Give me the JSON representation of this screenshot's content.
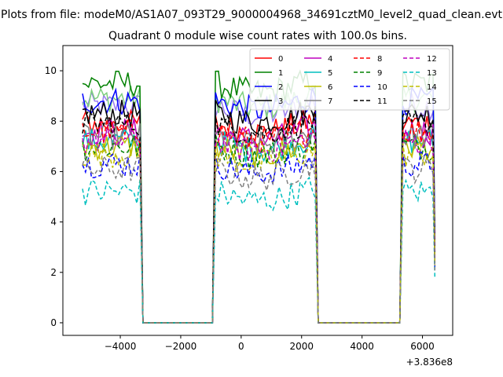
{
  "chart_data": {
    "type": "line",
    "suptitle": "Plots from file: modeM0/AS1A07_093T29_9000004968_34691cztM0_level2_quad_clean.evt",
    "title": "Quadrant 0 module wise count rates with 100.0s bins.",
    "xlabel": "",
    "ylabel": "",
    "offset_text": "+3.836e8",
    "xlim": [
      -5900,
      7000
    ],
    "ylim": [
      -0.5,
      11.0
    ],
    "xticks": [
      -4000,
      -2000,
      0,
      2000,
      4000,
      6000
    ],
    "xtick_labels": [
      "−4000",
      "−2000",
      "0",
      "2000",
      "4000",
      "6000"
    ],
    "yticks": [
      0,
      2,
      4,
      6,
      8,
      10
    ],
    "ytick_labels": [
      "0",
      "2",
      "4",
      "6",
      "8",
      "10"
    ],
    "grid": false,
    "legend_position": "top-right",
    "gti_segments": [
      {
        "start": -5250,
        "end": -3350
      },
      {
        "start": -850,
        "end": 2450
      },
      {
        "start": 5350,
        "end": 6350
      }
    ],
    "gap_level": 0,
    "series": [
      {
        "name": "0",
        "color": "#ff0000",
        "dash": "solid",
        "base": 7.9
      },
      {
        "name": "1",
        "color": "#008000",
        "dash": "solid",
        "base": 9.5
      },
      {
        "name": "2",
        "color": "#0000ff",
        "dash": "solid",
        "base": 8.8
      },
      {
        "name": "3",
        "color": "#000000",
        "dash": "solid",
        "base": 8.3
      },
      {
        "name": "4",
        "color": "#bf00bf",
        "dash": "solid",
        "base": 7.6
      },
      {
        "name": "5",
        "color": "#00bfbf",
        "dash": "solid",
        "base": 7.2
      },
      {
        "name": "6",
        "color": "#bfbf00",
        "dash": "solid",
        "base": 7.0
      },
      {
        "name": "7",
        "color": "#808080",
        "dash": "solid",
        "base": 7.4
      },
      {
        "name": "8",
        "color": "#ff0000",
        "dash": "dashed",
        "base": 7.6
      },
      {
        "name": "9",
        "color": "#008000",
        "dash": "dashed",
        "base": 7.0
      },
      {
        "name": "10",
        "color": "#0000ff",
        "dash": "dashed",
        "base": 6.3
      },
      {
        "name": "11",
        "color": "#000000",
        "dash": "dashed",
        "base": 7.9
      },
      {
        "name": "12",
        "color": "#bf00bf",
        "dash": "dashed",
        "base": 7.2
      },
      {
        "name": "13",
        "color": "#00bfbf",
        "dash": "dashed",
        "base": 5.2
      },
      {
        "name": "14",
        "color": "#bfbf00",
        "dash": "dashed",
        "base": 6.7
      },
      {
        "name": "15",
        "color": "#808080",
        "dash": "dashed",
        "base": 6.1
      }
    ],
    "extra_lines": [
      {
        "color": "#9a7cf0",
        "dash": "solid",
        "base": 8.6
      },
      {
        "color": "#7ccf7c",
        "dash": "solid",
        "base": 8.9
      }
    ]
  }
}
